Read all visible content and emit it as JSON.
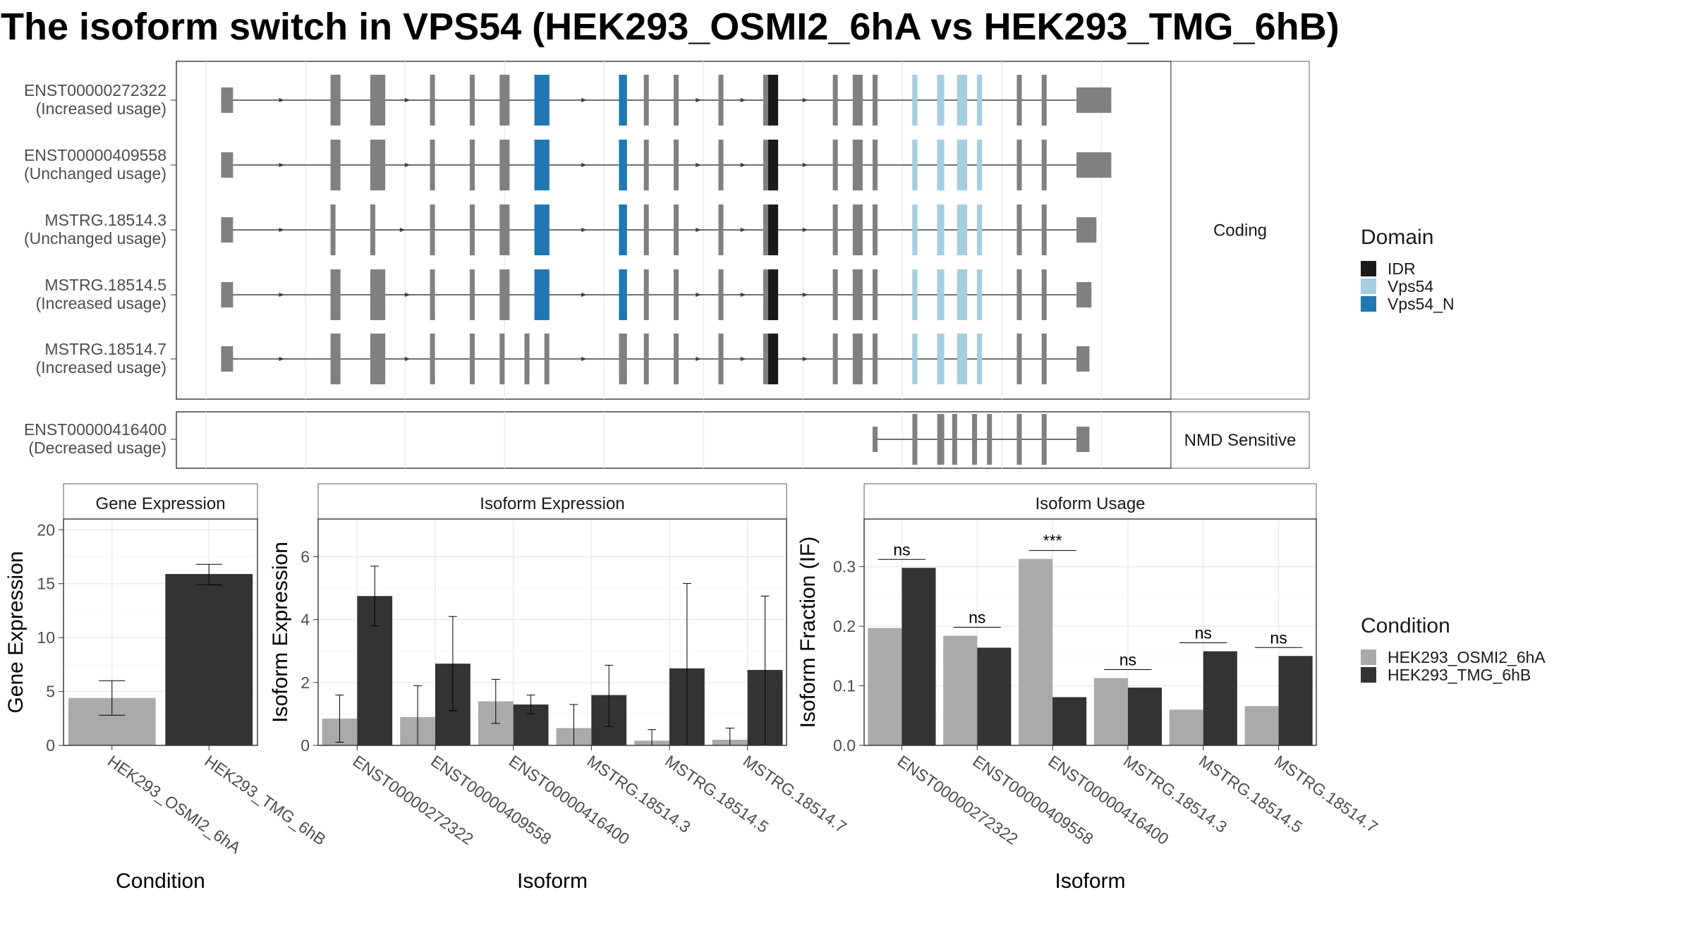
{
  "title": "The isoform switch in VPS54 (HEK293_OSMI2_6hA vs HEK293_TMG_6hB)",
  "colors": {
    "exon": "#808080",
    "intron": "#404040",
    "IDR": "#1a1a1a",
    "Vps54": "#a6cee3",
    "Vps54_N": "#1f78b4",
    "cond_a": "#aaaaaa",
    "cond_b": "#333333"
  },
  "legend_domain": {
    "title": "Domain",
    "items": [
      {
        "label": "IDR",
        "color": "#1a1a1a"
      },
      {
        "label": "Vps54",
        "color": "#a6cee3"
      },
      {
        "label": "Vps54_N",
        "color": "#1f78b4"
      }
    ]
  },
  "legend_condition": {
    "title": "Condition",
    "items": [
      {
        "label": "HEK293_OSMI2_6hA",
        "color": "#aaaaaa"
      },
      {
        "label": "HEK293_TMG_6hB",
        "color": "#333333"
      }
    ]
  },
  "chart_data": [
    {
      "type": "gene-structure",
      "genome_range": [
        0,
        100
      ],
      "panels": [
        {
          "strip": "Coding",
          "transcripts": [
            {
              "name": "ENST00000272322",
              "usage": "(Increased usage)",
              "exons": [
                [
                  4.5,
                  5.7
                ],
                [
                  15.5,
                  16.5
                ],
                [
                  19.5,
                  21
                ],
                [
                  25.5,
                  26
                ],
                [
                  29.5,
                  30
                ],
                [
                  32.5,
                  33.5
                ],
                [
                  36,
                  37.5
                ],
                [
                  44.5,
                  45.3
                ],
                [
                  47,
                  47.5
                ],
                [
                  50,
                  50.5
                ],
                [
                  54.5,
                  55
                ],
                [
                  59,
                  60.5
                ],
                [
                  66,
                  66.5
                ],
                [
                  68,
                  69
                ],
                [
                  70,
                  70.5
                ],
                [
                  74,
                  74.5
                ],
                [
                  76.5,
                  77.2
                ],
                [
                  78.5,
                  79.5
                ],
                [
                  80.5,
                  81
                ],
                [
                  84.5,
                  85
                ],
                [
                  87,
                  87.5
                ],
                [
                  90.5,
                  94
                ]
              ],
              "domains": [
                [
                  "Vps54_N",
                  36,
                  37.5
                ],
                [
                  "Vps54_N",
                  44.5,
                  45.3
                ],
                [
                  "IDR",
                  59.5,
                  60.5
                ],
                [
                  "Vps54",
                  74,
                  74.5
                ],
                [
                  "Vps54",
                  76.5,
                  77.2
                ],
                [
                  "Vps54",
                  78.5,
                  79.5
                ],
                [
                  "Vps54",
                  80.5,
                  81
                ]
              ]
            },
            {
              "name": "ENST00000409558",
              "usage": "(Unchanged usage)",
              "exons": [
                [
                  4.5,
                  5.7
                ],
                [
                  15.5,
                  16.5
                ],
                [
                  19.5,
                  21
                ],
                [
                  25.5,
                  26
                ],
                [
                  29.5,
                  30
                ],
                [
                  32.5,
                  33.5
                ],
                [
                  36,
                  37.5
                ],
                [
                  44.5,
                  45.3
                ],
                [
                  47,
                  47.5
                ],
                [
                  50,
                  50.5
                ],
                [
                  54.5,
                  55
                ],
                [
                  59,
                  60.5
                ],
                [
                  66,
                  66.5
                ],
                [
                  68,
                  69
                ],
                [
                  70,
                  70.5
                ],
                [
                  74,
                  74.5
                ],
                [
                  76.5,
                  77.2
                ],
                [
                  78.5,
                  79.5
                ],
                [
                  80.5,
                  81
                ],
                [
                  84.5,
                  85
                ],
                [
                  87,
                  87.5
                ],
                [
                  90.5,
                  94
                ]
              ],
              "domains": [
                [
                  "Vps54_N",
                  36,
                  37.5
                ],
                [
                  "Vps54_N",
                  44.5,
                  45.3
                ],
                [
                  "IDR",
                  59.5,
                  60.5
                ],
                [
                  "Vps54",
                  74,
                  74.5
                ],
                [
                  "Vps54",
                  76.5,
                  77.2
                ],
                [
                  "Vps54",
                  78.5,
                  79.5
                ],
                [
                  "Vps54",
                  80.5,
                  81
                ]
              ]
            },
            {
              "name": "MSTRG.18514.3",
              "usage": "(Unchanged usage)",
              "exons": [
                [
                  4.5,
                  5.7
                ],
                [
                  15.5,
                  16
                ],
                [
                  19.5,
                  20
                ],
                [
                  25.5,
                  26
                ],
                [
                  29.5,
                  30
                ],
                [
                  32.5,
                  33.5
                ],
                [
                  36,
                  37.5
                ],
                [
                  44.5,
                  45.3
                ],
                [
                  47,
                  47.5
                ],
                [
                  50,
                  50.5
                ],
                [
                  54.5,
                  55
                ],
                [
                  59,
                  60.5
                ],
                [
                  66,
                  66.5
                ],
                [
                  68,
                  69
                ],
                [
                  70,
                  70.5
                ],
                [
                  74,
                  74.5
                ],
                [
                  76.5,
                  77.2
                ],
                [
                  78.5,
                  79.5
                ],
                [
                  80.5,
                  81
                ],
                [
                  84.5,
                  85
                ],
                [
                  87,
                  87.5
                ],
                [
                  90.5,
                  92.5
                ]
              ],
              "domains": [
                [
                  "Vps54_N",
                  36,
                  37.5
                ],
                [
                  "Vps54_N",
                  44.5,
                  45.3
                ],
                [
                  "IDR",
                  59.5,
                  60.5
                ],
                [
                  "Vps54",
                  74,
                  74.5
                ],
                [
                  "Vps54",
                  76.5,
                  77.2
                ],
                [
                  "Vps54",
                  78.5,
                  79.5
                ],
                [
                  "Vps54",
                  80.5,
                  81
                ]
              ]
            },
            {
              "name": "MSTRG.18514.5",
              "usage": "(Increased usage)",
              "exons": [
                [
                  4.5,
                  5.7
                ],
                [
                  15.5,
                  16.5
                ],
                [
                  19.5,
                  21
                ],
                [
                  25.5,
                  26
                ],
                [
                  29.5,
                  30
                ],
                [
                  32.5,
                  33.5
                ],
                [
                  36,
                  37.5
                ],
                [
                  44.5,
                  45.3
                ],
                [
                  47,
                  47.5
                ],
                [
                  50,
                  50.5
                ],
                [
                  54.5,
                  55
                ],
                [
                  59,
                  60.5
                ],
                [
                  66,
                  66.5
                ],
                [
                  68,
                  69
                ],
                [
                  70,
                  70.5
                ],
                [
                  74,
                  74.5
                ],
                [
                  76.5,
                  77.2
                ],
                [
                  78.5,
                  79.5
                ],
                [
                  80.5,
                  81
                ],
                [
                  84.5,
                  85
                ],
                [
                  87,
                  87.5
                ],
                [
                  90.5,
                  92
                ]
              ],
              "domains": [
                [
                  "Vps54_N",
                  36,
                  37.5
                ],
                [
                  "Vps54_N",
                  44.5,
                  45.3
                ],
                [
                  "IDR",
                  59.5,
                  60.5
                ],
                [
                  "Vps54",
                  74,
                  74.5
                ],
                [
                  "Vps54",
                  76.5,
                  77.2
                ],
                [
                  "Vps54",
                  78.5,
                  79.5
                ],
                [
                  "Vps54",
                  80.5,
                  81
                ]
              ]
            },
            {
              "name": "MSTRG.18514.7",
              "usage": "(Increased usage)",
              "exons": [
                [
                  4.5,
                  5.7
                ],
                [
                  15.5,
                  16.5
                ],
                [
                  19.5,
                  21
                ],
                [
                  25.5,
                  26
                ],
                [
                  29.5,
                  30
                ],
                [
                  32.5,
                  33
                ],
                [
                  35,
                  35.5
                ],
                [
                  37,
                  37.5
                ],
                [
                  44.5,
                  45.3
                ],
                [
                  47,
                  47.5
                ],
                [
                  50,
                  50.5
                ],
                [
                  54.5,
                  55
                ],
                [
                  59,
                  60.5
                ],
                [
                  66,
                  66.5
                ],
                [
                  68,
                  69
                ],
                [
                  70,
                  70.5
                ],
                [
                  74,
                  74.5
                ],
                [
                  76.5,
                  77.2
                ],
                [
                  78.5,
                  79.5
                ],
                [
                  80.5,
                  81
                ],
                [
                  84.5,
                  85
                ],
                [
                  87,
                  87.5
                ],
                [
                  90.5,
                  91.8
                ]
              ],
              "domains": [
                [
                  "IDR",
                  59.5,
                  60.5
                ],
                [
                  "Vps54",
                  74,
                  74.5
                ],
                [
                  "Vps54",
                  76.5,
                  77.2
                ],
                [
                  "Vps54",
                  78.5,
                  79.5
                ],
                [
                  "Vps54",
                  80.5,
                  81
                ]
              ]
            }
          ]
        },
        {
          "strip": "NMD Sensitive",
          "transcripts": [
            {
              "name": "ENST00000416400",
              "usage": "(Decreased usage)",
              "exons": [
                [
                  70,
                  70.5
                ],
                [
                  74,
                  74.5
                ],
                [
                  76.5,
                  77.2
                ],
                [
                  78,
                  78.5
                ],
                [
                  80,
                  80.5
                ],
                [
                  81.5,
                  82
                ],
                [
                  84.5,
                  85
                ],
                [
                  87,
                  87.5
                ],
                [
                  90.5,
                  91.8
                ]
              ],
              "domains": []
            }
          ]
        }
      ]
    },
    {
      "type": "bar",
      "title": "Gene Expression",
      "xlabel": "Condition",
      "ylabel": "Gene Expression",
      "categories": [
        "HEK293_OSMI2_6hA",
        "HEK293_TMG_6hB"
      ],
      "values": [
        4.4,
        15.9
      ],
      "error_low": [
        2.8,
        14.9
      ],
      "error_high": [
        6.0,
        16.8
      ],
      "ylim": [
        0,
        21
      ],
      "yticks": [
        0,
        5,
        10,
        15,
        20
      ]
    },
    {
      "type": "bar",
      "title": "Isoform Expression",
      "xlabel": "Isoform",
      "ylabel": "Isoform Expression",
      "categories": [
        "ENST00000272322",
        "ENST00000409558",
        "ENST00000416400",
        "MSTRG.18514.3",
        "MSTRG.18514.5",
        "MSTRG.18514.7"
      ],
      "series": [
        {
          "name": "HEK293_OSMI2_6hA",
          "values": [
            0.85,
            0.9,
            1.4,
            0.55,
            0.15,
            0.18
          ],
          "error_low": [
            0.1,
            0.0,
            0.7,
            0.0,
            0.0,
            0.0
          ],
          "error_high": [
            1.6,
            1.9,
            2.1,
            1.3,
            0.5,
            0.55
          ]
        },
        {
          "name": "HEK293_TMG_6hB",
          "values": [
            4.75,
            2.6,
            1.3,
            1.6,
            2.45,
            2.4
          ],
          "error_low": [
            3.8,
            1.1,
            1.0,
            0.6,
            0.0,
            0.0
          ],
          "error_high": [
            5.7,
            4.1,
            1.6,
            2.55,
            5.15,
            4.75
          ]
        }
      ],
      "ylim": [
        0,
        7.2
      ],
      "yticks": [
        0,
        2,
        4,
        6
      ]
    },
    {
      "type": "bar",
      "title": "Isoform Usage",
      "xlabel": "Isoform",
      "ylabel": "Isoform Fraction (IF)",
      "categories": [
        "ENST00000272322",
        "ENST00000409558",
        "ENST00000416400",
        "MSTRG.18514.3",
        "MSTRG.18514.5",
        "MSTRG.18514.7"
      ],
      "series": [
        {
          "name": "HEK293_OSMI2_6hA",
          "values": [
            0.197,
            0.184,
            0.313,
            0.113,
            0.06,
            0.066
          ]
        },
        {
          "name": "HEK293_TMG_6hB",
          "values": [
            0.298,
            0.164,
            0.081,
            0.097,
            0.158,
            0.15
          ]
        }
      ],
      "significance": [
        "ns",
        "ns",
        "***",
        "ns",
        "ns",
        "ns"
      ],
      "ylim": [
        0,
        0.38
      ],
      "yticks": [
        0.0,
        0.1,
        0.2,
        0.3
      ],
      "ytick_labels": [
        "0.0",
        "0.1",
        "0.2",
        "0.3"
      ]
    }
  ]
}
